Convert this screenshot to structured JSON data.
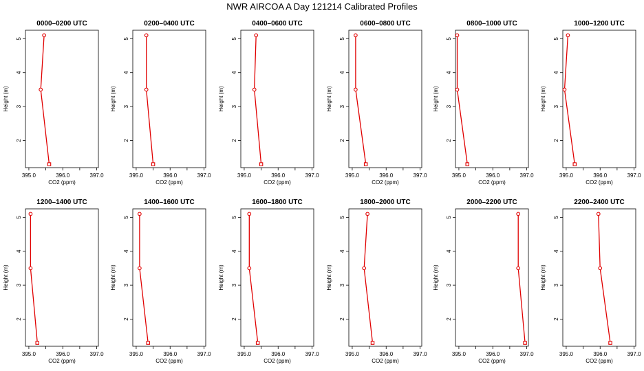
{
  "title": "NWR AIRCOA A  Day 121214  Calibrated Profiles",
  "colors": {
    "profile": "#e00000",
    "axis": "#000000"
  },
  "chart_data": [
    {
      "type": "line",
      "title": "0000–0200 UTC",
      "xlabel": "CO2 (ppm)",
      "ylabel": "Height (m)",
      "xlim": [
        394.9,
        397.05
      ],
      "ylim": [
        1.2,
        5.25
      ],
      "xticks": [
        "395.0",
        "396.0",
        "397.0"
      ],
      "yticks": [
        "2",
        "3",
        "4",
        "5"
      ],
      "x": [
        395.45,
        395.35,
        395.6
      ],
      "y": [
        5.1,
        3.5,
        1.3
      ]
    },
    {
      "type": "line",
      "title": "0200–0400 UTC",
      "xlabel": "CO2 (ppm)",
      "ylabel": "Height (m)",
      "xlim": [
        394.9,
        397.05
      ],
      "ylim": [
        1.2,
        5.25
      ],
      "xticks": [
        "395.0",
        "396.0",
        "397.0"
      ],
      "yticks": [
        "2",
        "3",
        "4",
        "5"
      ],
      "x": [
        395.3,
        395.3,
        395.5
      ],
      "y": [
        5.1,
        3.5,
        1.3
      ]
    },
    {
      "type": "line",
      "title": "0400–0600 UTC",
      "xlabel": "CO2 (ppm)",
      "ylabel": "Height (m)",
      "xlim": [
        394.9,
        397.05
      ],
      "ylim": [
        1.2,
        5.25
      ],
      "xticks": [
        "395.0",
        "396.0",
        "397.0"
      ],
      "yticks": [
        "2",
        "3",
        "4",
        "5"
      ],
      "x": [
        395.35,
        395.3,
        395.5
      ],
      "y": [
        5.1,
        3.5,
        1.3
      ]
    },
    {
      "type": "line",
      "title": "0600–0800 UTC",
      "xlabel": "CO2 (ppm)",
      "ylabel": "Height (m)",
      "xlim": [
        394.9,
        397.05
      ],
      "ylim": [
        1.2,
        5.25
      ],
      "xticks": [
        "395.0",
        "396.0",
        "397.0"
      ],
      "yticks": [
        "2",
        "3",
        "4",
        "5"
      ],
      "x": [
        395.1,
        395.1,
        395.4
      ],
      "y": [
        5.1,
        3.5,
        1.3
      ]
    },
    {
      "type": "line",
      "title": "0800–1000 UTC",
      "xlabel": "CO2 (ppm)",
      "ylabel": "Height (m)",
      "xlim": [
        394.9,
        397.05
      ],
      "ylim": [
        1.2,
        5.25
      ],
      "xticks": [
        "395.0",
        "396.0",
        "397.0"
      ],
      "yticks": [
        "2",
        "3",
        "4",
        "5"
      ],
      "x": [
        394.95,
        394.95,
        395.25
      ],
      "y": [
        5.1,
        3.5,
        1.3
      ]
    },
    {
      "type": "line",
      "title": "1000–1200 UTC",
      "xlabel": "CO2 (ppm)",
      "ylabel": "Height (m)",
      "xlim": [
        394.9,
        397.05
      ],
      "ylim": [
        1.2,
        5.25
      ],
      "xticks": [
        "395.0",
        "396.0",
        "397.0"
      ],
      "yticks": [
        "2",
        "3",
        "4",
        "5"
      ],
      "x": [
        395.05,
        394.95,
        395.25
      ],
      "y": [
        5.1,
        3.5,
        1.3
      ]
    },
    {
      "type": "line",
      "title": "1200–1400 UTC",
      "xlabel": "CO2 (ppm)",
      "ylabel": "Height (m)",
      "xlim": [
        394.9,
        397.05
      ],
      "ylim": [
        1.2,
        5.25
      ],
      "xticks": [
        "395.0",
        "396.0",
        "397.0"
      ],
      "yticks": [
        "2",
        "3",
        "4",
        "5"
      ],
      "x": [
        395.05,
        395.05,
        395.25
      ],
      "y": [
        5.1,
        3.5,
        1.3
      ]
    },
    {
      "type": "line",
      "title": "1400–1600 UTC",
      "xlabel": "CO2 (ppm)",
      "ylabel": "Height (m)",
      "xlim": [
        394.9,
        397.05
      ],
      "ylim": [
        1.2,
        5.25
      ],
      "xticks": [
        "395.0",
        "396.0",
        "397.0"
      ],
      "yticks": [
        "2",
        "3",
        "4",
        "5"
      ],
      "x": [
        395.1,
        395.1,
        395.35
      ],
      "y": [
        5.1,
        3.5,
        1.3
      ]
    },
    {
      "type": "line",
      "title": "1600–1800 UTC",
      "xlabel": "CO2 (ppm)",
      "ylabel": "Height (m)",
      "xlim": [
        394.9,
        397.05
      ],
      "ylim": [
        1.2,
        5.25
      ],
      "xticks": [
        "395.0",
        "396.0",
        "397.0"
      ],
      "yticks": [
        "2",
        "3",
        "4",
        "5"
      ],
      "x": [
        395.15,
        395.15,
        395.4
      ],
      "y": [
        5.1,
        3.5,
        1.3
      ]
    },
    {
      "type": "line",
      "title": "1800–2000 UTC",
      "xlabel": "CO2 (ppm)",
      "ylabel": "Height (m)",
      "xlim": [
        394.9,
        397.05
      ],
      "ylim": [
        1.2,
        5.25
      ],
      "xticks": [
        "395.0",
        "396.0",
        "397.0"
      ],
      "yticks": [
        "2",
        "3",
        "4",
        "5"
      ],
      "x": [
        395.45,
        395.35,
        395.6
      ],
      "y": [
        5.1,
        3.5,
        1.3
      ]
    },
    {
      "type": "line",
      "title": "2000–2200 UTC",
      "xlabel": "CO2 (ppm)",
      "ylabel": "Height (m)",
      "xlim": [
        394.9,
        397.05
      ],
      "ylim": [
        1.2,
        5.25
      ],
      "xticks": [
        "395.0",
        "396.0",
        "397.0"
      ],
      "yticks": [
        "2",
        "3",
        "4",
        "5"
      ],
      "x": [
        396.75,
        396.75,
        396.95
      ],
      "y": [
        5.1,
        3.5,
        1.3
      ]
    },
    {
      "type": "line",
      "title": "2200–2400 UTC",
      "xlabel": "CO2 (ppm)",
      "ylabel": "Height (m)",
      "xlim": [
        394.9,
        397.05
      ],
      "ylim": [
        1.2,
        5.25
      ],
      "xticks": [
        "395.0",
        "396.0",
        "397.0"
      ],
      "yticks": [
        "2",
        "3",
        "4",
        "5"
      ],
      "x": [
        395.95,
        396.0,
        396.3
      ],
      "y": [
        5.1,
        3.5,
        1.3
      ]
    }
  ]
}
